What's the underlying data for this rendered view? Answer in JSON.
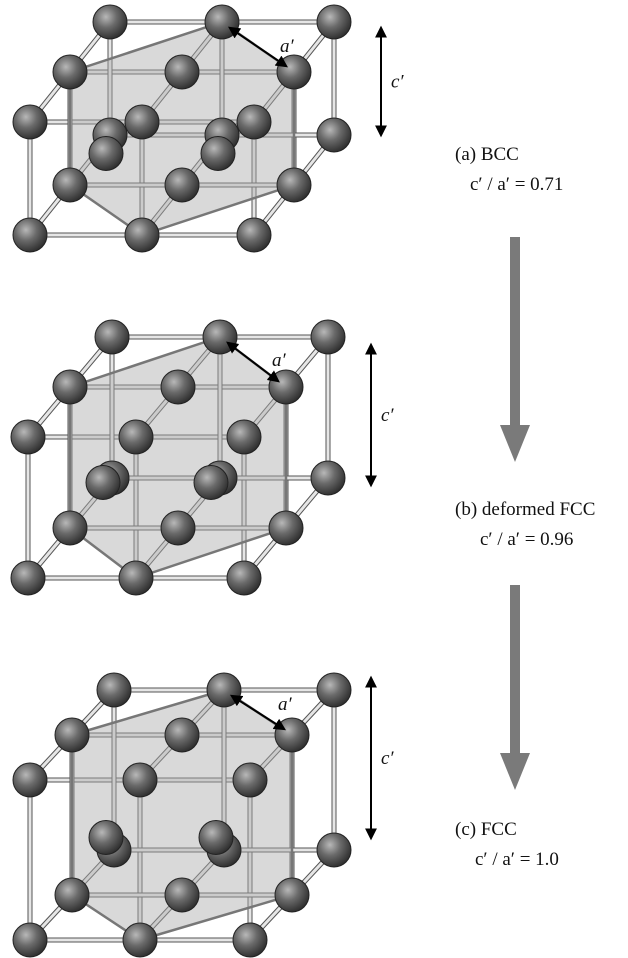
{
  "panels": [
    {
      "label": "(a) BCC",
      "ratio": "c′ / a′ = 0.71",
      "a_label": "a′",
      "c_label": "c′"
    },
    {
      "label": "(b) deformed FCC",
      "ratio": "c′ / a′ = 0.96",
      "a_label": "a′",
      "c_label": "c′"
    },
    {
      "label": "(c) FCC",
      "ratio": "c′ / a′ = 1.0",
      "a_label": "a′",
      "c_label": "c′"
    }
  ]
}
